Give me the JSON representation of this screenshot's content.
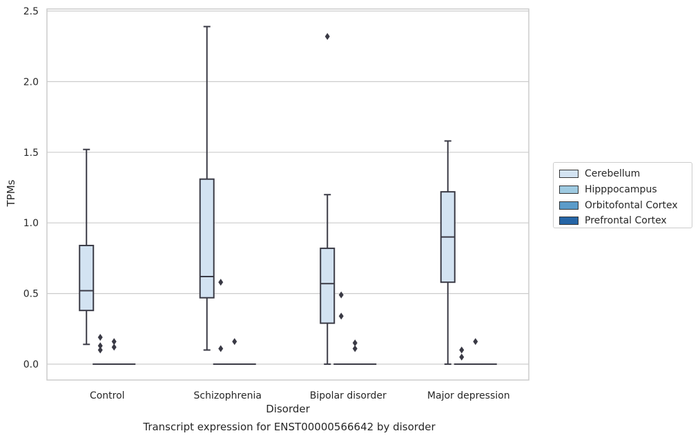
{
  "chart_data": {
    "type": "box",
    "title": "Transcript expression for ENST00000566642 by disorder",
    "xlabel": "Disorder",
    "ylabel": "TPMs",
    "ylim": [
      -0.12,
      2.52
    ],
    "yticks": [
      0.0,
      0.5,
      1.0,
      1.5,
      2.0,
      2.5
    ],
    "ytick_labels": [
      "0.0",
      "0.5",
      "1.0",
      "1.5",
      "2.0",
      "2.5"
    ],
    "categories": [
      "Control",
      "Schizophrenia",
      "Bipolar disorder",
      "Major depression"
    ],
    "grid": true,
    "legend_position": "right",
    "series": [
      {
        "name": "Cerebellum",
        "color": "#d3e3f2",
        "boxes": [
          {
            "whisker_low": 0.14,
            "q1": 0.38,
            "median": 0.52,
            "q3": 0.84,
            "whisker_high": 1.52,
            "outliers": []
          },
          {
            "whisker_low": 0.1,
            "q1": 0.47,
            "median": 0.62,
            "q3": 1.31,
            "whisker_high": 2.39,
            "outliers": []
          },
          {
            "whisker_low": 0.0,
            "q1": 0.29,
            "median": 0.57,
            "q3": 0.82,
            "whisker_high": 1.2,
            "outliers": [
              2.32
            ]
          },
          {
            "whisker_low": 0.0,
            "q1": 0.58,
            "median": 0.9,
            "q3": 1.22,
            "whisker_high": 1.58,
            "outliers": []
          }
        ]
      },
      {
        "name": "Hipppocampus",
        "color": "#9ecae1",
        "boxes": [
          {
            "whisker_low": 0.0,
            "q1": 0.0,
            "median": 0.0,
            "q3": 0.0,
            "whisker_high": 0.0,
            "outliers": [
              0.19,
              0.13,
              0.1
            ]
          },
          {
            "whisker_low": 0.0,
            "q1": 0.0,
            "median": 0.0,
            "q3": 0.0,
            "whisker_high": 0.0,
            "outliers": [
              0.58,
              0.11
            ]
          },
          {
            "whisker_low": 0.0,
            "q1": 0.0,
            "median": 0.0,
            "q3": 0.0,
            "whisker_high": 0.0,
            "outliers": [
              0.49,
              0.34
            ]
          },
          {
            "whisker_low": 0.0,
            "q1": 0.0,
            "median": 0.0,
            "q3": 0.0,
            "whisker_high": 0.0,
            "outliers": [
              0.1,
              0.05
            ]
          }
        ]
      },
      {
        "name": "Orbitofontal Cortex",
        "color": "#5b9bc9",
        "boxes": [
          {
            "whisker_low": 0.0,
            "q1": 0.0,
            "median": 0.0,
            "q3": 0.0,
            "whisker_high": 0.0,
            "outliers": [
              0.16,
              0.12
            ]
          },
          {
            "whisker_low": 0.0,
            "q1": 0.0,
            "median": 0.0,
            "q3": 0.0,
            "whisker_high": 0.0,
            "outliers": [
              0.16
            ]
          },
          {
            "whisker_low": 0.0,
            "q1": 0.0,
            "median": 0.0,
            "q3": 0.0,
            "whisker_high": 0.0,
            "outliers": [
              0.15,
              0.11
            ]
          },
          {
            "whisker_low": 0.0,
            "q1": 0.0,
            "median": 0.0,
            "q3": 0.0,
            "whisker_high": 0.0,
            "outliers": [
              0.16
            ]
          }
        ]
      },
      {
        "name": "Prefrontal Cortex",
        "color": "#2565a6",
        "boxes": [
          {
            "whisker_low": 0.0,
            "q1": 0.0,
            "median": 0.0,
            "q3": 0.0,
            "whisker_high": 0.0,
            "outliers": []
          },
          {
            "whisker_low": 0.0,
            "q1": 0.0,
            "median": 0.0,
            "q3": 0.0,
            "whisker_high": 0.0,
            "outliers": []
          },
          {
            "whisker_low": 0.0,
            "q1": 0.0,
            "median": 0.0,
            "q3": 0.0,
            "whisker_high": 0.0,
            "outliers": []
          },
          {
            "whisker_low": 0.0,
            "q1": 0.0,
            "median": 0.0,
            "q3": 0.0,
            "whisker_high": 0.0,
            "outliers": []
          }
        ]
      }
    ]
  }
}
